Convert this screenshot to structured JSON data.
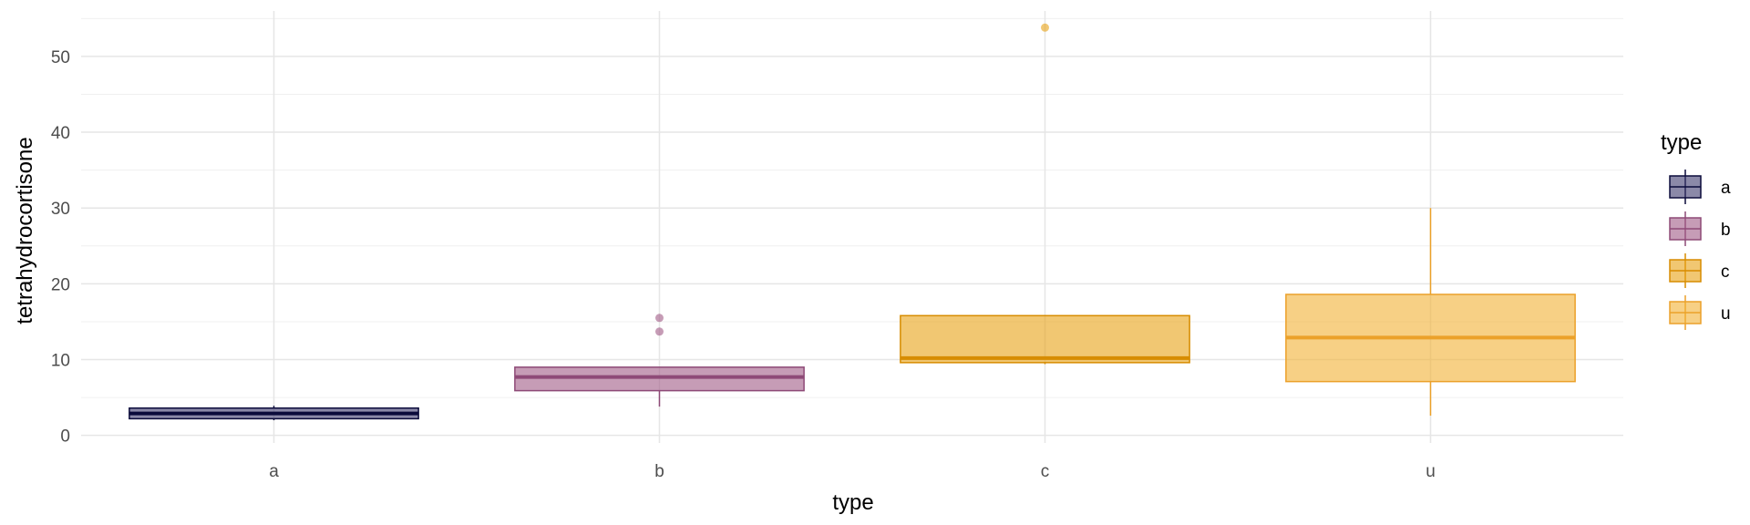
{
  "chart_data": {
    "type": "boxplot",
    "xlabel": "type",
    "ylabel": "tetrahydrocortisone",
    "categories": [
      "a",
      "b",
      "c",
      "u"
    ],
    "ylim": [
      -1,
      56
    ],
    "yticks": [
      0,
      10,
      20,
      30,
      40,
      50
    ],
    "grid": true,
    "legend": {
      "title": "type",
      "position": "right"
    },
    "colors": {
      "a": {
        "fill": "#3d3b6e",
        "stroke": "#0b0b3b"
      },
      "b": {
        "fill": "#a05a85",
        "stroke": "#8e4a77"
      },
      "c": {
        "fill": "#e8a114",
        "stroke": "#d78c00"
      },
      "u": {
        "fill": "#f2b134",
        "stroke": "#eba12a"
      }
    },
    "boxes": [
      {
        "category": "a",
        "min": 2.0,
        "q1": 2.2,
        "median": 2.9,
        "q3": 3.6,
        "max": 3.9,
        "outliers": []
      },
      {
        "category": "b",
        "min": 3.8,
        "q1": 5.9,
        "median": 7.7,
        "q3": 9.0,
        "max": 9.0,
        "outliers": [
          13.7,
          15.5
        ]
      },
      {
        "category": "c",
        "min": 9.4,
        "q1": 9.6,
        "median": 10.2,
        "q3": 15.8,
        "max": 15.8,
        "outliers": [
          53.8
        ]
      },
      {
        "category": "u",
        "min": 2.6,
        "q1": 7.1,
        "median": 12.9,
        "q3": 18.6,
        "max": 30.0,
        "outliers": []
      }
    ]
  }
}
